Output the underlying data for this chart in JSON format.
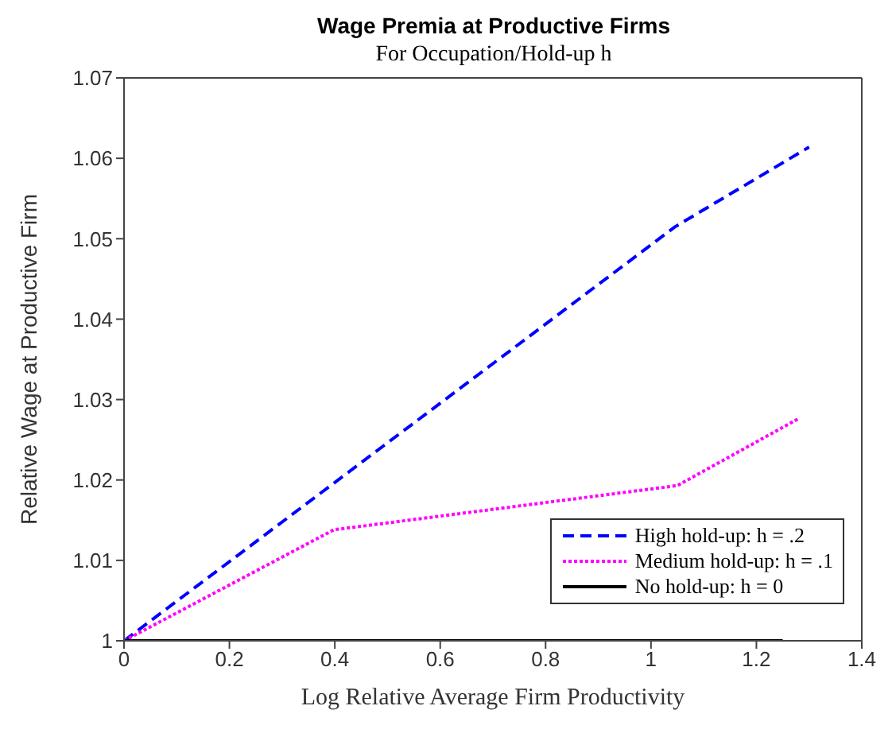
{
  "chart_data": {
    "type": "line",
    "title": "Wage Premia at Productive Firms",
    "subtitle": "For Occupation/Hold-up h",
    "xlabel": "Log Relative Average Firm Productivity",
    "ylabel": "Relative Wage at Productive Firm",
    "xlim": [
      0,
      1.4
    ],
    "xticks": [
      0,
      0.2,
      0.4,
      0.6,
      0.8,
      1,
      1.2,
      1.4
    ],
    "ylim": [
      1,
      1.07
    ],
    "yticks": [
      1,
      1.01,
      1.02,
      1.03,
      1.04,
      1.05,
      1.06,
      1.07
    ],
    "legend": "bottom right",
    "grid": false,
    "series": [
      {
        "name": "High hold-up: h = .2",
        "color": "#0000ff",
        "line_style": "dashed",
        "x": [
          0,
          1.046,
          1.3
        ],
        "values": [
          1,
          1.0515,
          1.0614
        ]
      },
      {
        "name": "Medium hold-up: h = .1",
        "color": "#ff00ff",
        "line_style": "dotted",
        "x": [
          0,
          0.398,
          1.05,
          1.282
        ],
        "values": [
          1,
          1.0138,
          1.0193,
          1.0277
        ]
      },
      {
        "name": "No hold-up: h = 0",
        "color": "#000000",
        "line_style": "solid",
        "x": [
          0,
          1.25
        ],
        "values": [
          1,
          1
        ]
      }
    ]
  }
}
